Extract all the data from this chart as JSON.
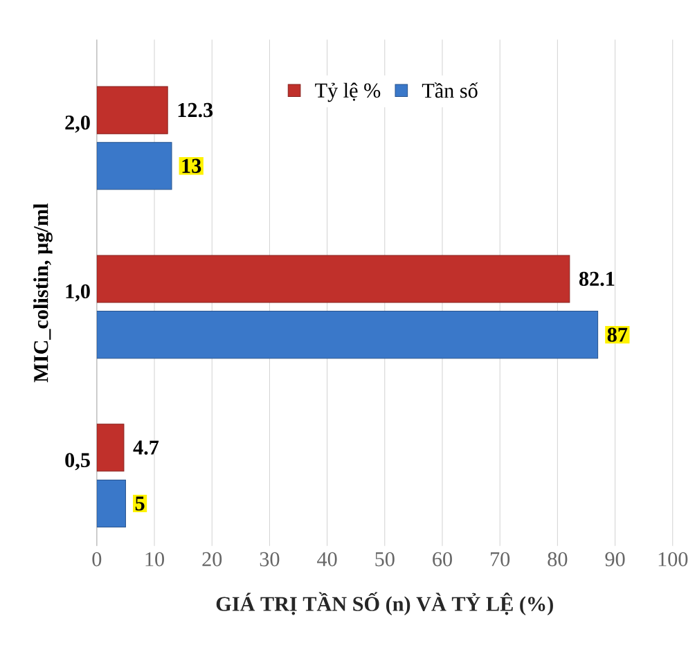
{
  "chart_data": {
    "type": "bar",
    "orientation": "horizontal",
    "categories": [
      "2,0",
      "1,0",
      "0,5"
    ],
    "series": [
      {
        "name": "Tỷ lệ %",
        "color": "#c0302b",
        "values": [
          12.3,
          82.1,
          4.7
        ]
      },
      {
        "name": "Tần số",
        "color": "#3a78c9",
        "values": [
          13,
          87,
          5
        ]
      }
    ],
    "xlim": [
      0,
      100
    ],
    "xticks": [
      0,
      10,
      20,
      30,
      40,
      50,
      60,
      70,
      80,
      90,
      100
    ],
    "xlabel": "GIÁ TRỊ TẦN SỐ (n) VÀ TỶ LỆ (%)",
    "ylabel": "MIC_colistin, µg/ml",
    "grid": "x",
    "legend": "top",
    "data_labels": true
  }
}
